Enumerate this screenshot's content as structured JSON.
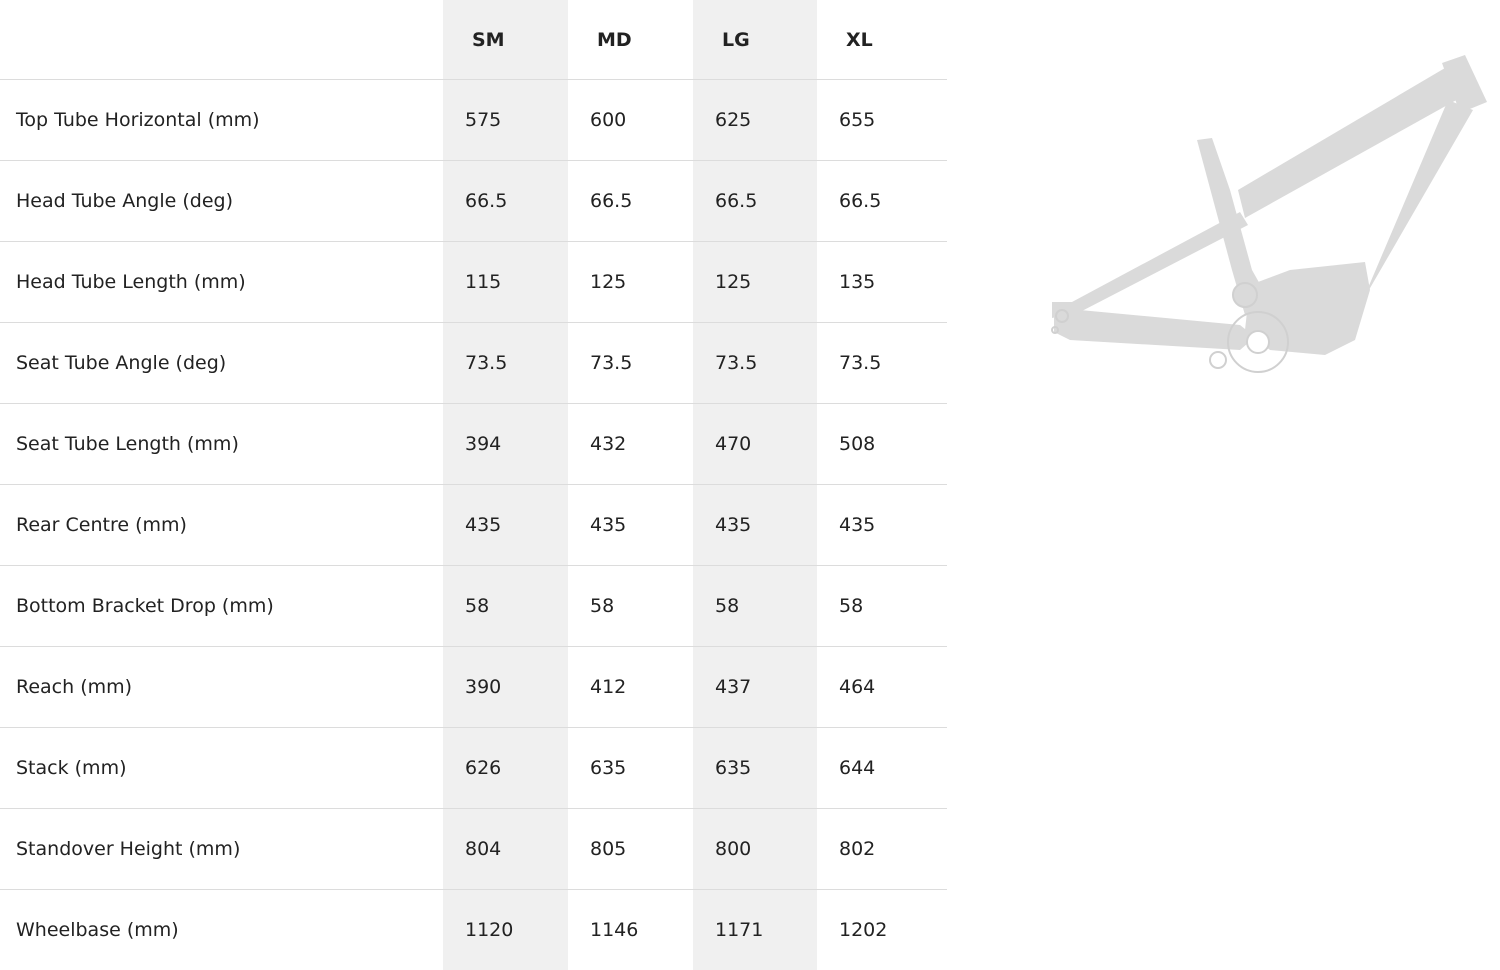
{
  "sizes": [
    "SM",
    "MD",
    "LG",
    "XL"
  ],
  "rows": [
    {
      "label": "Top Tube Horizontal (mm)",
      "values": [
        "575",
        "600",
        "625",
        "655"
      ]
    },
    {
      "label": "Head Tube Angle (deg)",
      "values": [
        "66.5",
        "66.5",
        "66.5",
        "66.5"
      ]
    },
    {
      "label": "Head Tube Length (mm)",
      "values": [
        "115",
        "125",
        "125",
        "135"
      ]
    },
    {
      "label": "Seat Tube Angle (deg)",
      "values": [
        "73.5",
        "73.5",
        "73.5",
        "73.5"
      ]
    },
    {
      "label": "Seat Tube Length (mm)",
      "values": [
        "394",
        "432",
        "470",
        "508"
      ]
    },
    {
      "label": "Rear Centre (mm)",
      "values": [
        "435",
        "435",
        "435",
        "435"
      ]
    },
    {
      "label": "Bottom Bracket Drop (mm)",
      "values": [
        "58",
        "58",
        "58",
        "58"
      ]
    },
    {
      "label": "Reach (mm)",
      "values": [
        "390",
        "412",
        "437",
        "464"
      ]
    },
    {
      "label": "Stack (mm)",
      "values": [
        "626",
        "635",
        "635",
        "644"
      ]
    },
    {
      "label": "Standover Height (mm)",
      "values": [
        "804",
        "805",
        "800",
        "802"
      ]
    },
    {
      "label": "Wheelbase (mm)",
      "values": [
        "1120",
        "1146",
        "1171",
        "1202"
      ]
    }
  ],
  "colors": {
    "shaded_column": "#f0f0f0",
    "frame": "#dadada",
    "divider": "#dcdcdc"
  }
}
